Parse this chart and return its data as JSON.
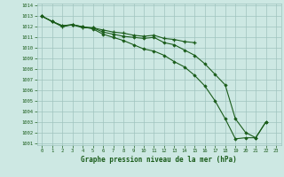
{
  "title": "Graphe pression niveau de la mer (hPa)",
  "line_plus_x": [
    0,
    1,
    2,
    3,
    4,
    5,
    6,
    7,
    8,
    9,
    10,
    11,
    12,
    13,
    14,
    15
  ],
  "line_plus_y": [
    1013.0,
    1012.5,
    1012.0,
    1012.2,
    1011.9,
    1011.9,
    1011.7,
    1011.5,
    1011.4,
    1011.2,
    1011.1,
    1011.2,
    1010.9,
    1010.8,
    1010.6,
    1010.5
  ],
  "line_steep_x": [
    0,
    1,
    2,
    3,
    4,
    5,
    6,
    7,
    8,
    9,
    10,
    11,
    12,
    13,
    14,
    15,
    16,
    17,
    18,
    19,
    20,
    21,
    22
  ],
  "line_steep_y": [
    1013.0,
    1012.5,
    1012.1,
    1012.2,
    1012.0,
    1011.8,
    1011.3,
    1011.0,
    1010.7,
    1010.3,
    1009.9,
    1009.7,
    1009.3,
    1008.7,
    1008.2,
    1007.4,
    1006.4,
    1005.0,
    1003.3,
    1001.4,
    1001.5,
    1001.5,
    1003.0
  ],
  "line_mod_x": [
    0,
    1,
    2,
    3,
    4,
    5,
    6,
    7,
    8,
    9,
    10,
    11,
    12,
    13,
    14,
    15,
    16,
    17,
    18,
    19,
    20,
    21,
    22
  ],
  "line_mod_y": [
    1013.0,
    1012.5,
    1012.1,
    1012.2,
    1012.0,
    1011.9,
    1011.5,
    1011.3,
    1011.1,
    1011.0,
    1010.9,
    1011.0,
    1010.5,
    1010.3,
    1009.8,
    1009.3,
    1008.5,
    1007.5,
    1006.5,
    1003.3,
    1002.0,
    1001.5,
    1003.0
  ],
  "ylim_min": 1001,
  "ylim_max": 1014,
  "bg_color": "#cde8e3",
  "grid_color": "#a0c4be",
  "line_color": "#1a5c1a",
  "title_color": "#1a5c1a",
  "tick_color": "#1a5c1a"
}
